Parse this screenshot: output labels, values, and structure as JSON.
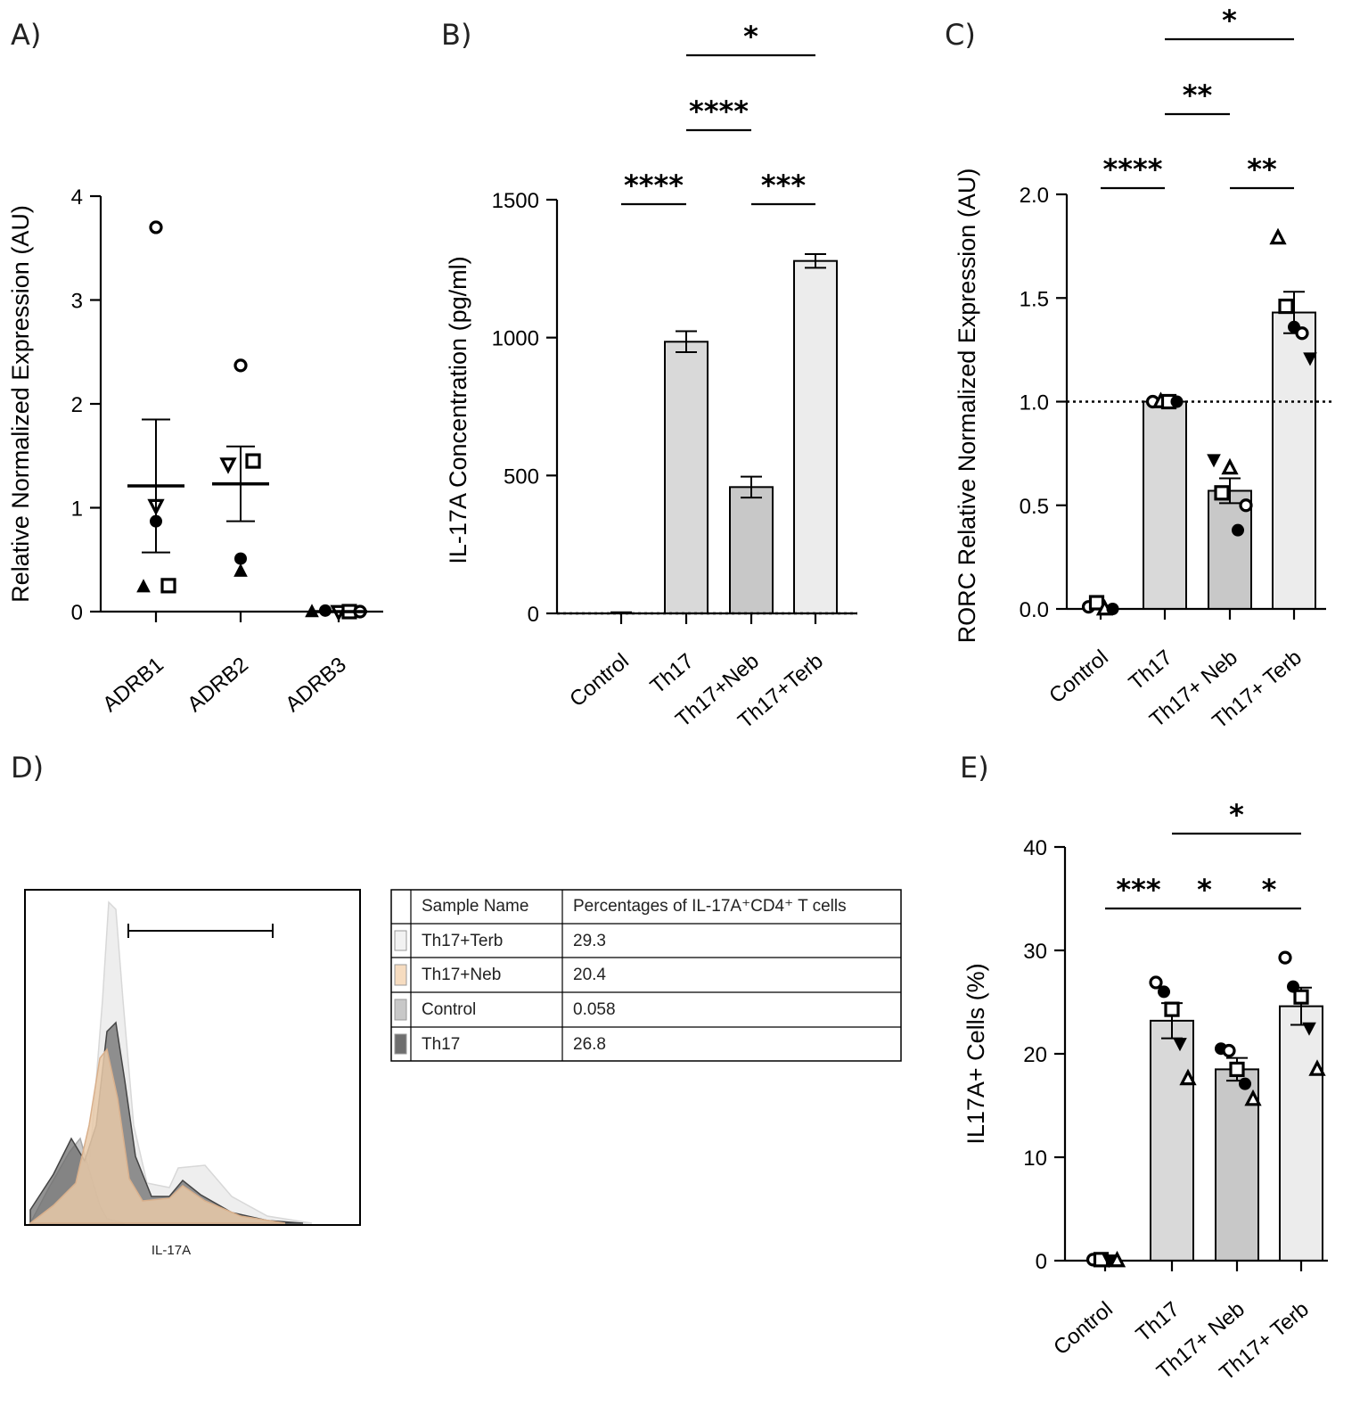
{
  "chart_data": [
    {
      "panel": "A)",
      "type": "scatter",
      "ylabel": "Relative Normalized Expression (AU)",
      "ylim": [
        0,
        4
      ],
      "yticks": [
        0,
        1,
        2,
        3,
        4
      ],
      "categories": [
        "ADRB1",
        "ADRB2",
        "ADRB3"
      ],
      "mean": [
        1.21,
        1.23,
        0.0
      ],
      "sem": [
        0.64,
        0.36,
        0.0
      ],
      "points": [
        [
          {
            "y": 3.7,
            "marker": "circle-open"
          },
          {
            "y": 1.02,
            "marker": "triangle-down-open"
          },
          {
            "y": 0.87,
            "marker": "circle"
          },
          {
            "y": 0.24,
            "marker": "triangle"
          },
          {
            "y": 0.25,
            "marker": "square-open"
          }
        ],
        [
          {
            "y": 2.37,
            "marker": "circle-open"
          },
          {
            "y": 1.42,
            "marker": "triangle-down-open"
          },
          {
            "y": 1.45,
            "marker": "square-open"
          },
          {
            "y": 0.51,
            "marker": "circle"
          },
          {
            "y": 0.39,
            "marker": "triangle"
          }
        ],
        [
          {
            "y": 0.0,
            "marker": "triangle"
          },
          {
            "y": 0.01,
            "marker": "circle"
          },
          {
            "y": 0.0,
            "marker": "triangle-down-open"
          },
          {
            "y": 0.0,
            "marker": "square-open"
          },
          {
            "y": 0.0,
            "marker": "circle-open"
          }
        ]
      ]
    },
    {
      "panel": "B)",
      "type": "bar",
      "ylabel": "IL-17A Concentration (pg/ml)",
      "ylim": [
        0,
        1500
      ],
      "yticks": [
        0,
        500,
        1000,
        1500
      ],
      "categories": [
        "Control",
        "Th17",
        "Th17+Neb",
        "Th17+Terb"
      ],
      "values": [
        2,
        985,
        458,
        1278
      ],
      "errors": [
        2,
        38,
        38,
        25
      ],
      "bar_colors": [
        "#d9d9d9",
        "#d9d9d9",
        "#c8c8c8",
        "#ececec"
      ],
      "reference_line": 0,
      "significance": [
        {
          "from": 0,
          "to": 1,
          "label": "****",
          "level": 1
        },
        {
          "from": 2,
          "to": 3,
          "label": "***",
          "level": 1
        },
        {
          "from": 1,
          "to": 2,
          "label": "****",
          "level": 2
        },
        {
          "from": 1,
          "to": 3,
          "label": "*",
          "level": 3
        }
      ]
    },
    {
      "panel": "C)",
      "type": "bar",
      "ylabel": "RORC Relative Normalized Expression (AU)",
      "ylim": [
        0,
        2.0
      ],
      "yticks": [
        0.0,
        0.5,
        1.0,
        1.5,
        2.0
      ],
      "ytick_labels": [
        "0.0",
        "0.5",
        "1.0",
        "1.5",
        "2.0"
      ],
      "categories": [
        "Control",
        "Th17",
        "Th17+ Neb",
        "Th17+ Terb"
      ],
      "values": [
        0.01,
        1.0,
        0.57,
        1.43
      ],
      "errors": [
        0.0,
        0.0,
        0.06,
        0.1
      ],
      "bar_colors": [
        "#d9d9d9",
        "#d9d9d9",
        "#c8c8c8",
        "#ececec"
      ],
      "reference_line": 1.0,
      "points": [
        [
          {
            "y": 0.01,
            "marker": "circle-open"
          },
          {
            "y": 0.03,
            "marker": "square-open"
          },
          {
            "y": 0.0,
            "marker": "triangle-open"
          },
          {
            "y": 0.0,
            "marker": "circle"
          }
        ],
        [
          {
            "y": 1.0,
            "marker": "circle-open"
          },
          {
            "y": 1.0,
            "marker": "triangle-open"
          },
          {
            "y": 1.0,
            "marker": "square-open"
          },
          {
            "y": 1.0,
            "marker": "circle"
          }
        ],
        [
          {
            "y": 0.72,
            "marker": "triangle-down"
          },
          {
            "y": 0.56,
            "marker": "square-open"
          },
          {
            "y": 0.68,
            "marker": "triangle-open"
          },
          {
            "y": 0.38,
            "marker": "circle"
          },
          {
            "y": 0.5,
            "marker": "circle-open"
          }
        ],
        [
          {
            "y": 1.79,
            "marker": "triangle-open"
          },
          {
            "y": 1.46,
            "marker": "square-open"
          },
          {
            "y": 1.36,
            "marker": "circle"
          },
          {
            "y": 1.33,
            "marker": "circle-open"
          },
          {
            "y": 1.21,
            "marker": "triangle-down"
          }
        ]
      ],
      "significance": [
        {
          "from": 0,
          "to": 1,
          "label": "****",
          "level": 1
        },
        {
          "from": 2,
          "to": 3,
          "label": "**",
          "level": 1
        },
        {
          "from": 1,
          "to": 2,
          "label": "**",
          "level": 2
        },
        {
          "from": 1,
          "to": 3,
          "label": "*",
          "level": 3
        }
      ]
    },
    {
      "panel": "D)",
      "type": "histogram-overlay",
      "xlabel": "IL-17A",
      "gate": "IL-17A+",
      "table_headers": [
        "Sample Name",
        "Percentages of IL-17A⁺CD4⁺ T cells"
      ],
      "table_rows": [
        {
          "sample": "Th17+Terb",
          "value": "29.3",
          "color": "#f2f2f2"
        },
        {
          "sample": "Th17+Neb",
          "value": "20.4",
          "color": "#f6dcc0"
        },
        {
          "sample": "Control",
          "value": "0.058",
          "color": "#c8c8c8"
        },
        {
          "sample": "Th17",
          "value": "26.8",
          "color": "#6e6e6e"
        }
      ]
    },
    {
      "panel": "E)",
      "type": "bar",
      "ylabel": "IL17A+ Cells (%)",
      "ylim": [
        0,
        40
      ],
      "yticks": [
        0,
        10,
        20,
        30,
        40
      ],
      "categories": [
        "Control",
        "Th17",
        "Th17+ Neb",
        "Th17+ Terb"
      ],
      "values": [
        0.05,
        23.2,
        18.5,
        24.6
      ],
      "errors": [
        0.0,
        1.7,
        1.1,
        1.8
      ],
      "bar_colors": [
        "#d9d9d9",
        "#d9d9d9",
        "#c8c8c8",
        "#ececec"
      ],
      "points": [
        [
          {
            "y": 0.1,
            "marker": "circle-open"
          },
          {
            "y": 0.1,
            "marker": "square-open"
          },
          {
            "y": 0.05,
            "marker": "triangle-down"
          },
          {
            "y": 0.0,
            "marker": "triangle-open"
          }
        ],
        [
          {
            "y": 26.9,
            "marker": "circle-open"
          },
          {
            "y": 26.0,
            "marker": "circle"
          },
          {
            "y": 24.3,
            "marker": "square-open"
          },
          {
            "y": 21.0,
            "marker": "triangle-down"
          },
          {
            "y": 17.6,
            "marker": "triangle-open"
          }
        ],
        [
          {
            "y": 20.5,
            "marker": "circle"
          },
          {
            "y": 20.3,
            "marker": "circle-open"
          },
          {
            "y": 18.5,
            "marker": "square-open"
          },
          {
            "y": 17.1,
            "marker": "circle"
          },
          {
            "y": 15.6,
            "marker": "triangle-open"
          }
        ],
        [
          {
            "y": 29.3,
            "marker": "circle-open"
          },
          {
            "y": 26.5,
            "marker": "circle"
          },
          {
            "y": 25.5,
            "marker": "square-open"
          },
          {
            "y": 22.5,
            "marker": "triangle-down"
          },
          {
            "y": 18.5,
            "marker": "triangle-open"
          }
        ]
      ],
      "significance": [
        {
          "from": 0,
          "to": 1,
          "label": "***",
          "level": 1
        },
        {
          "from": 1,
          "to": 2,
          "label": "*",
          "level": 1
        },
        {
          "from": 2,
          "to": 3,
          "label": "*",
          "level": 1
        },
        {
          "from": 1,
          "to": 3,
          "label": "*",
          "level": 2
        }
      ]
    }
  ]
}
